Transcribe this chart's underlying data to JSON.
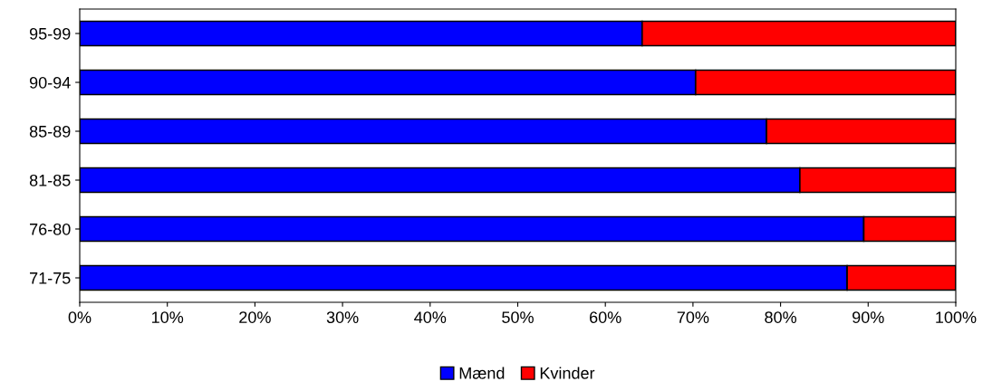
{
  "chart_data": {
    "type": "bar",
    "orientation": "horizontal",
    "stacked": true,
    "categories": [
      "95-99",
      "90-94",
      "85-89",
      "81-85",
      "76-80",
      "71-75"
    ],
    "series": [
      {
        "name": "Mænd",
        "color": "#0000ff",
        "values": [
          64.2,
          70.3,
          78.4,
          82.2,
          89.5,
          87.6
        ]
      },
      {
        "name": "Kvinder",
        "color": "#ff0000",
        "values": [
          35.8,
          29.7,
          21.6,
          17.8,
          10.5,
          12.4
        ]
      }
    ],
    "xlim": [
      0,
      100
    ],
    "xticks": [
      {
        "value": 0,
        "label": "0%"
      },
      {
        "value": 10,
        "label": "10%"
      },
      {
        "value": 20,
        "label": "20%"
      },
      {
        "value": 30,
        "label": "30%"
      },
      {
        "value": 40,
        "label": "40%"
      },
      {
        "value": 50,
        "label": "50%"
      },
      {
        "value": 60,
        "label": "60%"
      },
      {
        "value": 70,
        "label": "70%"
      },
      {
        "value": 80,
        "label": "80%"
      },
      {
        "value": 90,
        "label": "90%"
      },
      {
        "value": 100,
        "label": "100%"
      }
    ],
    "grid": false,
    "legend": "bottom"
  }
}
